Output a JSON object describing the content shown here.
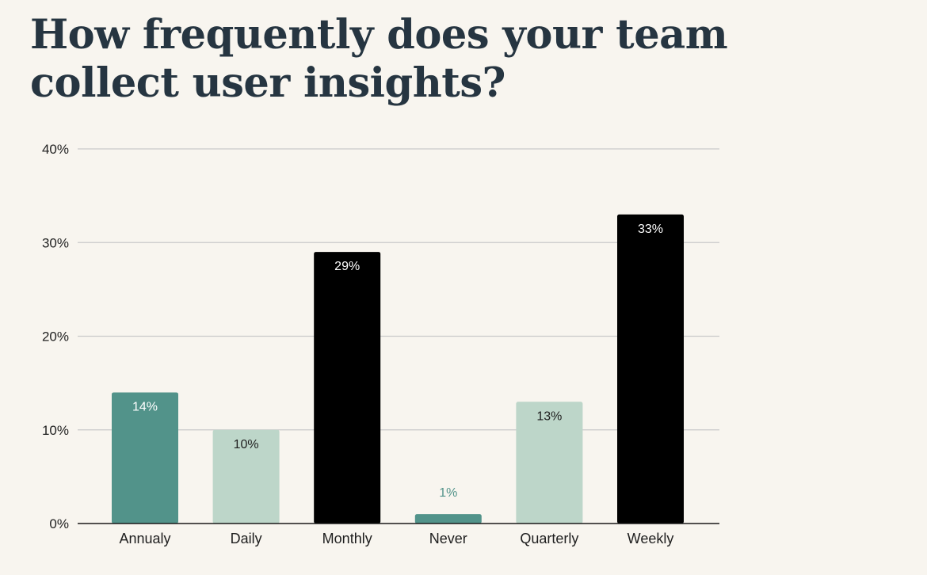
{
  "chart_data": {
    "type": "bar",
    "title": "How frequently does your team collect user insights?",
    "categories": [
      "Annualy",
      "Daily",
      "Monthly",
      "Never",
      "Quarterly",
      "Weekly"
    ],
    "values": [
      14,
      10,
      29,
      1,
      13,
      33
    ],
    "data_labels": [
      "14%",
      "10%",
      "29%",
      "1%",
      "13%",
      "33%"
    ],
    "bar_colors": [
      "#52938a",
      "#bdd6c9",
      "#000000",
      "#52938a",
      "#bdd6c9",
      "#000000"
    ],
    "label_colors": [
      "#ffffff",
      "#1e1e1e",
      "#ffffff",
      "#52938a",
      "#1e1e1e",
      "#ffffff"
    ],
    "label_inside": [
      true,
      true,
      true,
      false,
      true,
      true
    ],
    "ylim": [
      0,
      40
    ],
    "yticks": [
      0,
      10,
      20,
      30,
      40
    ],
    "ytick_labels": [
      "0%",
      "10%",
      "20%",
      "30%",
      "40%"
    ],
    "xlabel": "",
    "ylabel": "",
    "grid": true,
    "gridline_color": "#c9c9c9",
    "axis_color": "#1a1a1a"
  }
}
